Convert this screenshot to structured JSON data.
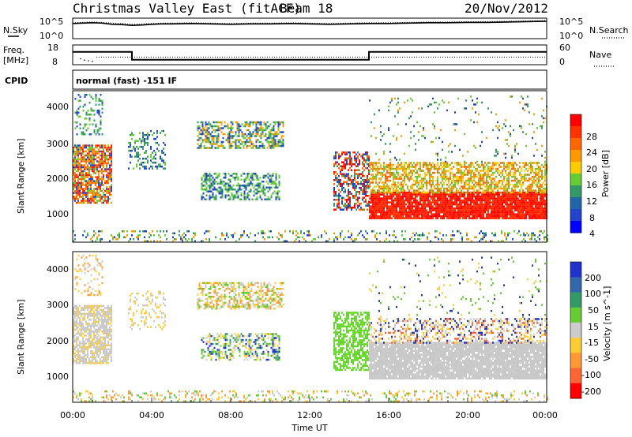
{
  "header": {
    "title": "Christmas Valley East (fitACF)",
    "beam": "Beam 18",
    "date": "20/Nov/2012"
  },
  "chart_data": [
    {
      "type": "line",
      "panel": "noise",
      "left_label": "N.Sky",
      "right_label": "N.Search",
      "left_ticks": [
        "10^5",
        "10^0"
      ],
      "right_ticks": [
        "10^5",
        "10^0"
      ],
      "legend_style": "dotted",
      "x_hours": [
        0,
        0.5,
        1,
        1.5,
        2,
        2.5,
        3,
        3.5,
        4,
        4.5,
        5,
        6,
        7,
        8,
        9,
        10,
        11,
        12,
        13,
        14,
        15,
        16,
        17,
        18,
        19,
        20,
        21,
        22,
        23,
        24
      ],
      "sky_log": [
        4.0,
        4.1,
        4.2,
        4.1,
        3.8,
        3.7,
        3.5,
        3.6,
        3.8,
        3.9,
        3.9,
        4.0,
        3.9,
        3.8,
        3.9,
        3.9,
        4.0,
        3.9,
        3.8,
        3.9,
        4.0,
        4.0,
        4.1,
        4.2,
        4.2,
        4.3,
        4.3,
        4.4,
        4.5,
        4.6
      ],
      "search_log": [
        4.2,
        4.3,
        4.4,
        4.3,
        4.1,
        4.0,
        3.8,
        3.9,
        4.0,
        4.1,
        4.1,
        4.2,
        4.1,
        4.0,
        4.1,
        4.1,
        4.2,
        4.1,
        4.0,
        4.1,
        4.2,
        4.2,
        4.3,
        4.4,
        4.4,
        4.5,
        4.5,
        4.6,
        4.7,
        4.8
      ]
    },
    {
      "type": "line",
      "panel": "frequency",
      "left_label_1": "Freq.",
      "left_label_2": "[MHz]",
      "right_label": "Nave",
      "left_ticks": [
        "18",
        "8"
      ],
      "right_ticks": [
        "60",
        "0"
      ],
      "legend_style": "dotted",
      "freq_steps": [
        {
          "start": 0,
          "end": 3,
          "value": 14.5
        },
        {
          "start": 3,
          "end": 15,
          "value": 10.5
        },
        {
          "start": 15,
          "end": 24,
          "value": 14.5
        }
      ],
      "nave_value": 23,
      "nave_early": [
        {
          "h": 0.4,
          "v": 18
        },
        {
          "h": 0.6,
          "v": 14
        },
        {
          "h": 0.8,
          "v": 12
        },
        {
          "h": 1.0,
          "v": 10
        }
      ]
    },
    {
      "type": "table",
      "panel": "cpid",
      "label": "CPID",
      "text": "normal (fast) -151 IF"
    },
    {
      "type": "heatmap",
      "panel": "power",
      "ylabel": "Slant Range [km]",
      "yticks": [
        "4000",
        "3000",
        "2000",
        "1000"
      ],
      "ylim": [
        180,
        4600
      ],
      "xlim": [
        0,
        24
      ],
      "colorbar_label": "Power [dB]",
      "colorbar_ticks": [
        "28",
        "24",
        "20",
        "16",
        "12",
        "8",
        "4"
      ],
      "colorbar_colors": [
        "#ff0000",
        "#ff3300",
        "#ff6600",
        "#ff9900",
        "#ffcc00",
        "#66cc33",
        "#339966",
        "#2266aa",
        "#2244cc",
        "#0000ff"
      ],
      "regions": [
        {
          "h0": 0,
          "h1": 2,
          "r0": 1300,
          "r1": 3000,
          "c": [
            "#ff2200",
            "#ff6600",
            "#ff9900",
            "#66cc33",
            "#2244cc"
          ],
          "d": 0.75
        },
        {
          "h0": 0.1,
          "h1": 1.5,
          "r0": 3300,
          "r1": 4500,
          "c": [
            "#66cc33",
            "#339966",
            "#2244cc"
          ],
          "d": 0.25
        },
        {
          "h0": 2.8,
          "h1": 4.7,
          "r0": 2300,
          "r1": 3400,
          "c": [
            "#2244cc",
            "#339966",
            "#66cc33"
          ],
          "d": 0.3
        },
        {
          "h0": 6.3,
          "h1": 10.7,
          "r0": 2900,
          "r1": 3700,
          "c": [
            "#2244cc",
            "#339966",
            "#66cc33",
            "#ff9900"
          ],
          "d": 0.55
        },
        {
          "h0": 6.5,
          "h1": 10.5,
          "r0": 1400,
          "r1": 2200,
          "c": [
            "#2244cc",
            "#339966",
            "#66cc33"
          ],
          "d": 0.5
        },
        {
          "h0": 13.2,
          "h1": 15.0,
          "r0": 1100,
          "r1": 2800,
          "c": [
            "#ff0000",
            "#ff6600",
            "#2244cc",
            "#339966"
          ],
          "d": 0.5
        },
        {
          "h0": 15.0,
          "h1": 24.0,
          "r0": 850,
          "r1": 1600,
          "c": [
            "#ff0000",
            "#ff2200",
            "#ff3300"
          ],
          "d": 0.92
        },
        {
          "h0": 15.0,
          "h1": 24.0,
          "r0": 1600,
          "r1": 2500,
          "c": [
            "#ff6600",
            "#ff9900",
            "#ffcc00",
            "#66cc33"
          ],
          "d": 0.6
        },
        {
          "h0": 15.0,
          "h1": 24.0,
          "r0": 2500,
          "r1": 4400,
          "c": [
            "#2244cc",
            "#339966",
            "#66cc33",
            "#ff9900"
          ],
          "d": 0.05
        },
        {
          "h0": 0,
          "h1": 24,
          "r0": 180,
          "r1": 500,
          "c": [
            "#2244cc",
            "#339966",
            "#66cc33",
            "#ff9900"
          ],
          "d": 0.2
        }
      ]
    },
    {
      "type": "heatmap",
      "panel": "velocity",
      "ylabel": "Slant Range [km]",
      "yticks": [
        "4000",
        "3000",
        "2000",
        "1000"
      ],
      "ylim": [
        180,
        4600
      ],
      "xlim": [
        0,
        24
      ],
      "xticks": [
        "00:00",
        "04:00",
        "08:00",
        "12:00",
        "16:00",
        "20:00",
        "00:00"
      ],
      "xlabel": "Time UT",
      "colorbar_label": "Velocity [m s^-1]",
      "colorbar_ticks": [
        "200",
        "100",
        "50",
        "15",
        "-15",
        "-50",
        "-100",
        "-200"
      ],
      "colorbar_colors": [
        "#2233cc",
        "#3366aa",
        "#339966",
        "#66cc33",
        "#cccccc",
        "#ffcc33",
        "#ff9933",
        "#ff6633",
        "#ff0000"
      ],
      "regions": [
        {
          "h0": 0,
          "h1": 2,
          "r0": 1300,
          "r1": 3000,
          "c": [
            "#c8c8c8",
            "#c8c8c8",
            "#cccccc",
            "#ffcc33"
          ],
          "d": 0.7
        },
        {
          "h0": 0.1,
          "h1": 1.5,
          "r0": 3300,
          "r1": 4500,
          "c": [
            "#ffcc33",
            "#ff9933",
            "#cccccc"
          ],
          "d": 0.2
        },
        {
          "h0": 2.8,
          "h1": 4.7,
          "r0": 2300,
          "r1": 3400,
          "c": [
            "#cccccc",
            "#ffcc33"
          ],
          "d": 0.25
        },
        {
          "h0": 6.3,
          "h1": 10.7,
          "r0": 2900,
          "r1": 3700,
          "c": [
            "#cccccc",
            "#ffcc33",
            "#ff9933",
            "#66cc33"
          ],
          "d": 0.5
        },
        {
          "h0": 6.5,
          "h1": 10.5,
          "r0": 1400,
          "r1": 2200,
          "c": [
            "#cccccc",
            "#66cc33",
            "#339966",
            "#2233cc",
            "#ffcc33"
          ],
          "d": 0.45
        },
        {
          "h0": 13.2,
          "h1": 15.0,
          "r0": 1100,
          "r1": 2800,
          "c": [
            "#66cc33",
            "#66dd22"
          ],
          "d": 0.6
        },
        {
          "h0": 15.0,
          "h1": 24.0,
          "r0": 850,
          "r1": 1900,
          "c": [
            "#c8c8c8",
            "#c8c8c8",
            "#cccccc"
          ],
          "d": 0.92
        },
        {
          "h0": 15.0,
          "h1": 24.0,
          "r0": 1900,
          "r1": 2600,
          "c": [
            "#cccccc",
            "#ffcc33",
            "#2233cc",
            "#ff6633"
          ],
          "d": 0.35
        },
        {
          "h0": 15.0,
          "h1": 24.0,
          "r0": 2600,
          "r1": 4400,
          "c": [
            "#ffcc33",
            "#2233cc",
            "#66cc33"
          ],
          "d": 0.04
        },
        {
          "h0": 0,
          "h1": 24,
          "r0": 180,
          "r1": 500,
          "c": [
            "#ffcc33",
            "#ff9933",
            "#66cc33",
            "#cccccc"
          ],
          "d": 0.22
        }
      ]
    }
  ]
}
